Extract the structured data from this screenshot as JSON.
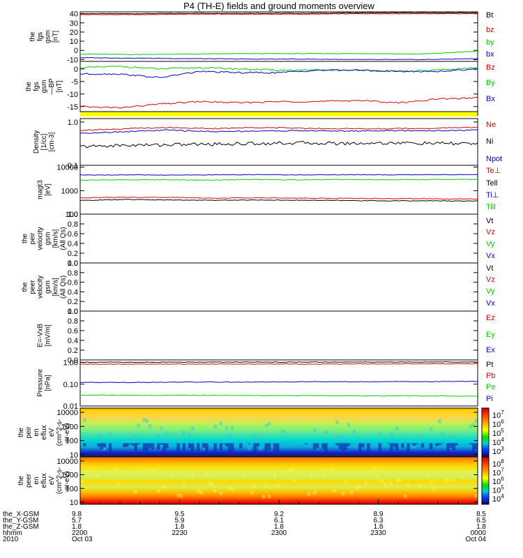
{
  "title": "P4 (TH-E) fields and ground moments overview",
  "colors": {
    "red": "#dd0000",
    "green": "#00cc00",
    "blue": "#0000cc",
    "black": "#000000",
    "yellow": "#ffff00"
  },
  "chart_data": [
    {
      "type": "line",
      "ylabel": [
        "the",
        "fgs",
        "gsm",
        "[nT]"
      ],
      "ylim": [
        -12,
        42
      ],
      "yticks": [
        "40",
        "30",
        "20",
        "10",
        "0",
        "-10"
      ],
      "ytick_values": [
        40,
        30,
        20,
        10,
        0,
        -10
      ],
      "series": [
        {
          "name": "Bt",
          "color": "black",
          "values": [
            40,
            40,
            40.5,
            40.5,
            40.5,
            41,
            41,
            41
          ]
        },
        {
          "name": "bz",
          "color": "red",
          "values": [
            39,
            39,
            39.5,
            39.5,
            39.5,
            40,
            40,
            40
          ]
        },
        {
          "name": "by",
          "color": "green",
          "values": [
            -4,
            -4.5,
            -4,
            -3.5,
            -3.5,
            -3.5,
            -4,
            -1
          ]
        },
        {
          "name": "bx",
          "color": "blue",
          "values": [
            -8,
            -8.5,
            -9,
            -9.5,
            -9.5,
            -10,
            -10,
            -9
          ]
        }
      ]
    },
    {
      "type": "line",
      "ylabel": [
        "the",
        "fgs",
        "gsm",
        "—BP",
        "[nT]"
      ],
      "ylim": [
        -17,
        3
      ],
      "yticks": [
        "0",
        "-5",
        "-10",
        "-15"
      ],
      "ytick_values": [
        0,
        -5,
        -10,
        -15
      ],
      "series": [
        {
          "name": "Bz",
          "color": "red",
          "values": [
            -15,
            -15.5,
            -14,
            -13,
            -13.5,
            -13,
            -13,
            -12.5,
            -13.5,
            -12,
            -11.5
          ]
        },
        {
          "name": "By",
          "color": "green",
          "values": [
            0.5,
            1,
            0,
            0.5,
            0,
            -0.5,
            -0.5,
            -0.5,
            -1,
            -0.5,
            0.5
          ]
        },
        {
          "name": "Bx",
          "color": "blue",
          "values": [
            -2,
            -2,
            -3.5,
            -1,
            -1.5,
            -1.5,
            -0.5,
            -0.5,
            -1,
            -1,
            0
          ]
        }
      ]
    },
    {
      "type": "line",
      "ylabel": [
        "Density",
        "[1/cc]",
        "[cm-3]"
      ],
      "yscale": "log",
      "ylim": [
        0.1,
        1.2
      ],
      "yticks": [
        "1.0",
        "0.1"
      ],
      "ytick_values": [
        1.0,
        0.1
      ],
      "series": [
        {
          "name": "Ne",
          "color": "red",
          "values": [
            0.65,
            0.7,
            0.75,
            0.7,
            0.75,
            0.72,
            0.7,
            0.7,
            0.72,
            0.75
          ]
        },
        {
          "name": "Ni",
          "color": "black",
          "values": [
            0.27,
            0.29,
            0.3,
            0.31,
            0.32,
            0.33,
            0.32,
            0.33,
            0.32,
            0.32
          ]
        },
        {
          "name": "Npot",
          "color": "blue",
          "values": [
            0.55,
            0.6,
            0.65,
            0.6,
            0.62,
            0.63,
            0.62,
            0.63,
            0.63,
            0.65
          ]
        }
      ]
    },
    {
      "type": "line",
      "ylabel": [
        "magt3",
        "[eV]"
      ],
      "yscale": "log",
      "ylim": [
        100,
        12000
      ],
      "yticks": [
        "10000",
        "1000",
        "100"
      ],
      "ytick_values": [
        10000,
        1000,
        100
      ],
      "series": [
        {
          "name": "Te⊥",
          "color": "red",
          "values": [
            500,
            520,
            520,
            480,
            500,
            480,
            470,
            460,
            450,
            440
          ]
        },
        {
          "name": "Tell",
          "color": "black",
          "values": [
            380,
            420,
            400,
            390,
            400,
            390,
            380,
            370,
            370,
            360
          ]
        },
        {
          "name": "Ti⊥",
          "color": "blue",
          "values": [
            4600,
            4700,
            4600,
            4700,
            4800,
            4700,
            4800,
            4700,
            4800,
            4800
          ]
        },
        {
          "name": "Till",
          "color": "green",
          "values": [
            2800,
            2900,
            2900,
            2800,
            3000,
            2900,
            3000,
            2900,
            3000,
            3000
          ]
        }
      ]
    },
    {
      "type": "line",
      "ylabel": [
        "the",
        "peir",
        "velocity",
        "gsm",
        "[km/s]",
        "(All Qs)"
      ],
      "ylim": [
        0,
        1
      ],
      "yticks": [
        "1.0",
        "0.8",
        "0.6",
        "0.4",
        "0.2",
        "0.0"
      ],
      "ytick_values": [
        1.0,
        0.8,
        0.6,
        0.4,
        0.2,
        0.0
      ],
      "series": [
        {
          "name": "Vt",
          "color": "black",
          "values": []
        },
        {
          "name": "Vz",
          "color": "red",
          "values": []
        },
        {
          "name": "Vy",
          "color": "green",
          "values": []
        },
        {
          "name": "Vx",
          "color": "blue",
          "values": []
        }
      ]
    },
    {
      "type": "line",
      "ylabel": [
        "the",
        "peer",
        "velocity",
        "gsm",
        "[km/s]",
        "(All Qs)"
      ],
      "ylim": [
        0,
        1
      ],
      "yticks": [
        "1.0",
        "0.8",
        "0.6",
        "0.4",
        "0.2",
        "0.0"
      ],
      "ytick_values": [
        1.0,
        0.8,
        0.6,
        0.4,
        0.2,
        0.0
      ],
      "series": [
        {
          "name": "Vt",
          "color": "black",
          "values": []
        },
        {
          "name": "Vz",
          "color": "red",
          "values": []
        },
        {
          "name": "Vy",
          "color": "green",
          "values": []
        },
        {
          "name": "Vx",
          "color": "blue",
          "values": []
        }
      ]
    },
    {
      "type": "line",
      "ylabel": [
        "E=-VxB",
        "[mV/m]"
      ],
      "ylim": [
        0,
        1
      ],
      "yticks": [
        "1.0",
        "0.8",
        "0.6",
        "0.4",
        "0.2",
        "0.0"
      ],
      "ytick_values": [
        1.0,
        0.8,
        0.6,
        0.4,
        0.2,
        0.0
      ],
      "series": [
        {
          "name": "Ez",
          "color": "red",
          "values": []
        },
        {
          "name": "Ey",
          "color": "green",
          "values": []
        },
        {
          "name": "Ex",
          "color": "blue",
          "values": []
        }
      ]
    },
    {
      "type": "line",
      "ylabel": [
        "Pressure",
        "[nPa]"
      ],
      "yscale": "log",
      "ylim": [
        0.01,
        1.3
      ],
      "yticks": [
        "1.00",
        "0.10",
        "0.01"
      ],
      "ytick_values": [
        1.0,
        0.1,
        0.01
      ],
      "series": [
        {
          "name": "Pt",
          "color": "black",
          "values": [
            1.02,
            1.02,
            1.03,
            1.03,
            1.03,
            1.04,
            1.04,
            1.05
          ]
        },
        {
          "name": "Pb",
          "color": "red",
          "values": [
            0.82,
            0.83,
            0.84,
            0.84,
            0.84,
            0.85,
            0.86,
            0.87
          ]
        },
        {
          "name": "Pe",
          "color": "green",
          "values": [
            0.032,
            0.031,
            0.031,
            0.03,
            0.03,
            0.029,
            0.029,
            0.028
          ]
        },
        {
          "name": "Pi",
          "color": "blue",
          "values": [
            0.12,
            0.12,
            0.125,
            0.125,
            0.13,
            0.13,
            0.13,
            0.135
          ]
        }
      ]
    },
    {
      "type": "heatmap",
      "ylabel": [
        "the",
        "peir",
        "en",
        "eflux",
        "eV",
        "(cm^2-s-",
        "sr-eV)"
      ],
      "yscale": "log",
      "ylim": [
        7,
        20000
      ],
      "yticks": [
        "10000",
        "1000",
        "100",
        "10"
      ],
      "ytick_values": [
        10000,
        1000,
        100,
        10
      ],
      "colorbar": {
        "ticks": [
          "10^7",
          "10^6",
          "10^5",
          "10^4",
          "10^3"
        ],
        "range": [
          1000,
          10000000
        ]
      }
    },
    {
      "type": "heatmap",
      "ylabel": [
        "the",
        "peer",
        "en",
        "eflux",
        "eV",
        "(cm^2-s-",
        "sr-eV)"
      ],
      "yscale": "log",
      "ylim": [
        7,
        20000
      ],
      "yticks": [
        "10000",
        "1000",
        "100",
        "10"
      ],
      "ytick_values": [
        10000,
        1000,
        100,
        10
      ],
      "colorbar": {
        "ticks": [
          "10^8",
          "10^7",
          "10^6",
          "10^5",
          "10^4"
        ],
        "range": [
          10000,
          100000000
        ]
      }
    }
  ],
  "xaxis": {
    "row_labels": [
      "the_X-GSM",
      "the_Y-GSM",
      "the_Z-GSM",
      "hhmm",
      "2010"
    ],
    "columns": [
      [
        "9.8",
        "5.7",
        "1.8",
        "2200",
        "Oct 03"
      ],
      [
        "9.5",
        "5.9",
        "1.8",
        "2230",
        ""
      ],
      [
        "9.2",
        "6.1",
        "1.8",
        "2300",
        ""
      ],
      [
        "8.9",
        "6.3",
        "1.8",
        "2330",
        ""
      ],
      [
        "8.5",
        "6.5",
        "1.8",
        "0000",
        "Oct 04"
      ]
    ]
  }
}
